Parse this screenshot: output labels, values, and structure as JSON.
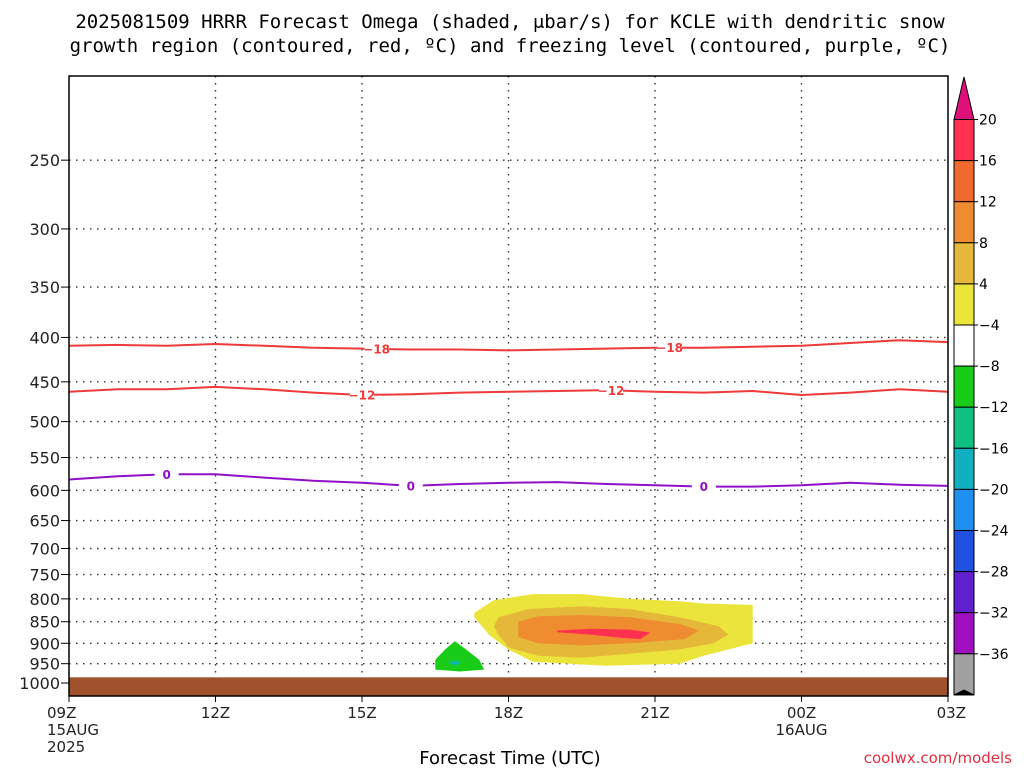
{
  "chart_data": {
    "type": "heatmap",
    "title_lines": [
      "2025081509 HRRR Forecast Omega (shaded, μbar/s) for KCLE with dendritic snow",
      "growth region (contoured, red, ºC) and freezing level (contoured, purple, ºC)"
    ],
    "xlabel": "Forecast Time (UTC)",
    "credit": "coolwx.com/models",
    "x_ticks": [
      {
        "hour": 0,
        "lines": [
          "09Z",
          "15AUG",
          "2025"
        ]
      },
      {
        "hour": 3,
        "lines": [
          "12Z"
        ]
      },
      {
        "hour": 6,
        "lines": [
          "15Z"
        ]
      },
      {
        "hour": 9,
        "lines": [
          "18Z"
        ]
      },
      {
        "hour": 12,
        "lines": [
          "21Z"
        ]
      },
      {
        "hour": 15,
        "lines": [
          "00Z",
          "16AUG"
        ]
      },
      {
        "hour": 18,
        "lines": [
          "03Z"
        ]
      }
    ],
    "xlim_hours": [
      0,
      18
    ],
    "y_ticks": [
      250,
      300,
      350,
      400,
      450,
      500,
      550,
      600,
      650,
      700,
      750,
      800,
      850,
      900,
      950,
      1000
    ],
    "ylim_hPa": [
      200,
      1035
    ],
    "y_scale": "log-pressure",
    "grid": true,
    "surface_color": "#a0522d",
    "colorbar": {
      "labels": [
        "20",
        "16",
        "12",
        "8",
        "4",
        "−4",
        "−8",
        "−12",
        "−16",
        "−20",
        "−24",
        "−28",
        "−32",
        "−36"
      ],
      "colors": [
        "#ff3050",
        "#f06a30",
        "#ef8c30",
        "#e6b83a",
        "#ebe43a",
        "#ffffff",
        "#18cc18",
        "#10c080",
        "#10b0c0",
        "#2090f0",
        "#2050e0",
        "#6020d0",
        "#a010c0",
        "#a0a0a0"
      ],
      "top_color": "#e0107a",
      "bottom_color": "#000000"
    },
    "contours": [
      {
        "value": -18,
        "color": "#ee3a3a",
        "label": "−18",
        "points": [
          [
            0,
            409
          ],
          [
            1,
            408
          ],
          [
            2,
            409
          ],
          [
            3,
            407
          ],
          [
            4,
            409
          ],
          [
            5,
            411
          ],
          [
            6,
            412
          ],
          [
            7,
            413
          ],
          [
            8,
            413
          ],
          [
            9,
            414
          ],
          [
            10,
            413
          ],
          [
            11,
            412
          ],
          [
            12,
            411
          ],
          [
            13,
            411
          ],
          [
            14,
            410
          ],
          [
            15,
            409
          ],
          [
            16,
            406
          ],
          [
            17,
            403
          ],
          [
            18,
            405
          ]
        ],
        "label_hours": [
          6.3,
          12.3
        ]
      },
      {
        "value": -12,
        "color": "#ee3a3a",
        "label": "−12",
        "points": [
          [
            0,
            462
          ],
          [
            1,
            459
          ],
          [
            2,
            459
          ],
          [
            3,
            456
          ],
          [
            4,
            459
          ],
          [
            5,
            463
          ],
          [
            6,
            466
          ],
          [
            7,
            465
          ],
          [
            8,
            463
          ],
          [
            9,
            462
          ],
          [
            10,
            461
          ],
          [
            11,
            460
          ],
          [
            12,
            462
          ],
          [
            13,
            463
          ],
          [
            14,
            461
          ],
          [
            15,
            466
          ],
          [
            16,
            463
          ],
          [
            17,
            459
          ],
          [
            18,
            462
          ]
        ],
        "label_hours": [
          6.0,
          11.1
        ]
      },
      {
        "value": 0,
        "color": "#9010c8",
        "label": "0",
        "points": [
          [
            0,
            583
          ],
          [
            1,
            578
          ],
          [
            2,
            575
          ],
          [
            3,
            575
          ],
          [
            4,
            580
          ],
          [
            5,
            585
          ],
          [
            6,
            588
          ],
          [
            7,
            593
          ],
          [
            8,
            590
          ],
          [
            9,
            588
          ],
          [
            10,
            587
          ],
          [
            11,
            590
          ],
          [
            12,
            592
          ],
          [
            13,
            594
          ],
          [
            14,
            594
          ],
          [
            15,
            592
          ],
          [
            16,
            588
          ],
          [
            17,
            591
          ],
          [
            18,
            593
          ]
        ],
        "label_hours": [
          2.0,
          7.0,
          13.0
        ]
      }
    ],
    "omega_regions": [
      {
        "value_range": [
          4,
          8
        ],
        "color": "#ebe43a",
        "polygon": [
          [
            8.3,
            830
          ],
          [
            8.7,
            803
          ],
          [
            9.5,
            790
          ],
          [
            10.5,
            790
          ],
          [
            11.5,
            800
          ],
          [
            12.5,
            805
          ],
          [
            13.0,
            810
          ],
          [
            14.0,
            813
          ],
          [
            14.0,
            900
          ],
          [
            13.0,
            930
          ],
          [
            12.5,
            950
          ],
          [
            11.0,
            955
          ],
          [
            9.5,
            945
          ],
          [
            9.0,
            915
          ],
          [
            8.6,
            880
          ],
          [
            8.3,
            840
          ]
        ]
      },
      {
        "value_range": [
          8,
          12
        ],
        "color": "#e6b83a",
        "polygon": [
          [
            8.8,
            840
          ],
          [
            9.4,
            822
          ],
          [
            10.5,
            816
          ],
          [
            11.5,
            822
          ],
          [
            12.5,
            840
          ],
          [
            13.3,
            860
          ],
          [
            13.5,
            880
          ],
          [
            13.2,
            900
          ],
          [
            12.5,
            915
          ],
          [
            11.5,
            925
          ],
          [
            10.5,
            935
          ],
          [
            9.6,
            930
          ],
          [
            9.0,
            910
          ],
          [
            8.8,
            880
          ],
          [
            8.7,
            860
          ]
        ]
      },
      {
        "value_range": [
          12,
          16
        ],
        "color": "#ef8c30",
        "polygon": [
          [
            9.2,
            850
          ],
          [
            9.6,
            838
          ],
          [
            10.5,
            835
          ],
          [
            11.5,
            840
          ],
          [
            12.5,
            855
          ],
          [
            12.9,
            870
          ],
          [
            12.6,
            890
          ],
          [
            11.5,
            900
          ],
          [
            10.5,
            905
          ],
          [
            9.6,
            900
          ],
          [
            9.2,
            885
          ]
        ]
      },
      {
        "value_range": [
          16,
          20
        ],
        "color": "#ff3050",
        "polygon": [
          [
            10.0,
            870
          ],
          [
            10.7,
            866
          ],
          [
            11.5,
            868
          ],
          [
            11.9,
            875
          ],
          [
            11.7,
            890
          ],
          [
            11.3,
            887
          ],
          [
            10.7,
            880
          ],
          [
            10.0,
            874
          ]
        ]
      },
      {
        "value_range": [
          -8,
          -4
        ],
        "color": "#18cc18",
        "polygon": [
          [
            7.5,
            940
          ],
          [
            7.7,
            915
          ],
          [
            7.9,
            895
          ],
          [
            8.1,
            912
          ],
          [
            8.4,
            940
          ],
          [
            8.5,
            965
          ],
          [
            8.0,
            970
          ],
          [
            7.5,
            965
          ]
        ]
      },
      {
        "value_range": [
          -12,
          -8
        ],
        "color": "#10c080",
        "polygon": [
          [
            7.75,
            947
          ],
          [
            7.9,
            940
          ],
          [
            8.05,
            947
          ],
          [
            7.9,
            955
          ]
        ]
      },
      {
        "value_range": [
          -16,
          -12
        ],
        "color": "#10b0c0",
        "polygon": [
          [
            7.82,
            949
          ],
          [
            7.9,
            945
          ],
          [
            7.98,
            949
          ],
          [
            7.9,
            953
          ]
        ]
      }
    ]
  }
}
